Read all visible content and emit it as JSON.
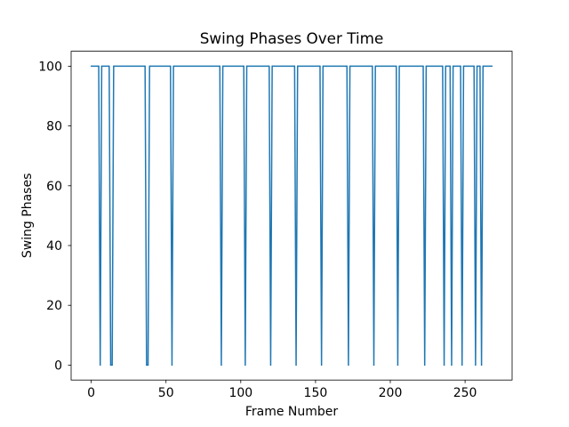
{
  "chart_data": {
    "type": "line",
    "title": "Swing Phases Over Time",
    "xlabel": "Frame Number",
    "ylabel": "Swing Phases",
    "xlim": [
      -13.45,
      281.45
    ],
    "ylim": [
      -5,
      105
    ],
    "xticks": [
      0,
      50,
      100,
      150,
      200,
      250
    ],
    "yticks": [
      0,
      20,
      40,
      60,
      80,
      100
    ],
    "grid": false,
    "legend": "none",
    "series": [
      {
        "name": "Swing Phases",
        "color": "#1f77b4",
        "x": [
          0,
          5,
          6,
          7,
          12,
          13,
          14,
          15,
          36,
          37,
          38,
          39,
          53,
          54,
          55,
          86,
          87,
          88,
          102,
          103,
          104,
          119,
          120,
          121,
          136,
          137,
          138,
          153,
          154,
          155,
          171,
          172,
          173,
          188,
          189,
          190,
          204,
          205,
          206,
          222,
          223,
          224,
          235,
          236,
          237,
          240,
          241,
          242,
          247,
          248,
          249,
          256,
          257,
          258,
          260,
          261,
          262,
          268
        ],
        "y": [
          100,
          100,
          0,
          100,
          100,
          0,
          0,
          100,
          100,
          0,
          0,
          100,
          100,
          0,
          100,
          100,
          0,
          100,
          100,
          0,
          100,
          100,
          0,
          100,
          100,
          0,
          100,
          100,
          0,
          100,
          100,
          0,
          100,
          100,
          0,
          100,
          100,
          0,
          100,
          100,
          0,
          100,
          100,
          0,
          100,
          100,
          0,
          100,
          100,
          0,
          100,
          100,
          0,
          100,
          100,
          0,
          100,
          100
        ]
      }
    ]
  }
}
